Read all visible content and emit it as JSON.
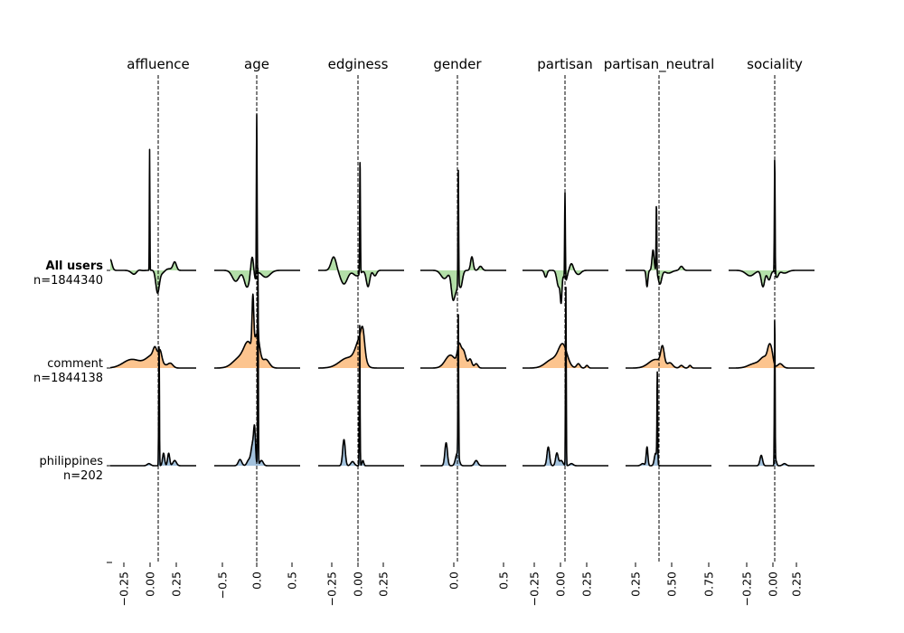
{
  "chart_data": {
    "type": "area",
    "columns": [
      {
        "title": "affluence",
        "center": 0.06,
        "ticks": [
          -0.25,
          0.0,
          0.25
        ],
        "tick_labels": [
          "−0.25",
          "0.00",
          "0.25"
        ]
      },
      {
        "title": "age",
        "center": 0.0,
        "ticks": [
          -0.5,
          0.0,
          0.5
        ],
        "tick_labels": [
          "−0.5",
          "0.0",
          "0.5"
        ]
      },
      {
        "title": "edginess",
        "center": 0.0,
        "ticks": [
          -0.25,
          0.0,
          0.25
        ],
        "tick_labels": [
          "−0.25",
          "0.00",
          "0.25"
        ]
      },
      {
        "title": "gender",
        "center": 0.05,
        "ticks": [
          0.0,
          0.5
        ],
        "tick_labels": [
          "0.0",
          "0.5"
        ]
      },
      {
        "title": "partisan",
        "center": 0.05,
        "ticks": [
          -0.25,
          0.0,
          0.25
        ],
        "tick_labels": [
          "−0.25",
          "0.00",
          "0.25"
        ]
      },
      {
        "title": "partisan_neutral",
        "center": 0.45,
        "ticks": [
          0.25,
          0.5,
          0.75
        ],
        "tick_labels": [
          "0.25",
          "0.50",
          "0.75"
        ]
      },
      {
        "title": "sociality",
        "center": 0.05,
        "ticks": [
          -0.25,
          0.0,
          0.25
        ],
        "tick_labels": [
          "−0.25",
          "0.00",
          "0.25"
        ]
      }
    ],
    "rows": [
      {
        "name": "All users",
        "count_label": "n=1844340",
        "color": "#b3dfa8",
        "bold": true
      },
      {
        "name": "comment",
        "count_label": "n=1844138",
        "color": "#fcc48e",
        "bold": false
      },
      {
        "name": "philippines",
        "count_label": "n=202",
        "color": "#a3c2dd",
        "bold": false
      }
    ]
  }
}
